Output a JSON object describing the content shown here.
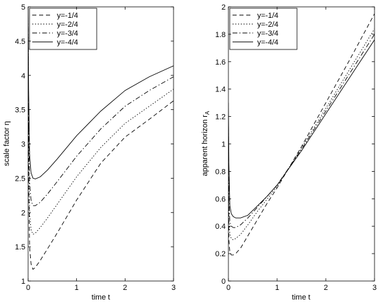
{
  "chart_data": [
    {
      "type": "line",
      "xlabel": "time t",
      "ylabel": "scale factor η",
      "xlim": [
        0,
        3
      ],
      "ylim": [
        1,
        5
      ],
      "xticks": [
        "0",
        "1",
        "2",
        "3"
      ],
      "yticks": [
        "1",
        "1.5",
        "2",
        "2.5",
        "3",
        "3.5",
        "4",
        "4.5",
        "5"
      ],
      "legend_position": "top-left",
      "grid": false,
      "series": [
        {
          "name": "y=-1/4",
          "style": "dashed",
          "x": [
            0,
            0.01,
            0.03,
            0.06,
            0.1,
            0.15,
            0.25,
            0.4,
            0.6,
            1.0,
            1.5,
            2.0,
            2.5,
            3.0
          ],
          "y": [
            5.0,
            2.5,
            1.5,
            1.25,
            1.17,
            1.2,
            1.3,
            1.47,
            1.7,
            2.18,
            2.72,
            3.1,
            3.36,
            3.63
          ]
        },
        {
          "name": "y=-2/4",
          "style": "dotted",
          "x": [
            0,
            0.01,
            0.03,
            0.06,
            0.1,
            0.15,
            0.25,
            0.4,
            0.6,
            1.0,
            1.5,
            2.0,
            2.5,
            3.0
          ],
          "y": [
            5.0,
            2.9,
            2.0,
            1.75,
            1.68,
            1.7,
            1.78,
            1.92,
            2.12,
            2.52,
            2.95,
            3.3,
            3.55,
            3.8
          ]
        },
        {
          "name": "y=-3/4",
          "style": "dashdot",
          "x": [
            0,
            0.01,
            0.03,
            0.06,
            0.1,
            0.15,
            0.25,
            0.4,
            0.6,
            1.0,
            1.5,
            2.0,
            2.5,
            3.0
          ],
          "y": [
            5.0,
            3.3,
            2.45,
            2.18,
            2.1,
            2.1,
            2.15,
            2.27,
            2.45,
            2.82,
            3.22,
            3.55,
            3.78,
            3.98
          ]
        },
        {
          "name": "y=-4/4",
          "style": "solid",
          "x": [
            0,
            0.01,
            0.03,
            0.06,
            0.1,
            0.15,
            0.25,
            0.4,
            0.6,
            1.0,
            1.5,
            2.0,
            2.5,
            3.0
          ],
          "y": [
            5.0,
            3.8,
            2.85,
            2.58,
            2.5,
            2.49,
            2.52,
            2.62,
            2.78,
            3.12,
            3.48,
            3.78,
            3.98,
            4.14
          ]
        }
      ]
    },
    {
      "type": "line",
      "xlabel": "time t",
      "ylabel": "apparent horizon r",
      "ylabel_subscript": "A",
      "xlim": [
        0,
        3
      ],
      "ylim": [
        0,
        2
      ],
      "xticks": [
        "0",
        "1",
        "2",
        "3"
      ],
      "yticks": [
        "0",
        "0.2",
        "0.4",
        "0.6",
        "0.8",
        "1",
        "1.2",
        "1.4",
        "1.6",
        "1.8",
        "2"
      ],
      "legend_position": "top-left",
      "grid": false,
      "series": [
        {
          "name": "y=-1/4",
          "style": "dashed",
          "x": [
            0,
            0.01,
            0.03,
            0.06,
            0.1,
            0.15,
            0.25,
            0.4,
            0.6,
            0.8,
            1.0,
            1.5,
            2.0,
            2.5,
            3.0
          ],
          "y": [
            0.85,
            0.3,
            0.21,
            0.19,
            0.19,
            0.2,
            0.24,
            0.33,
            0.45,
            0.57,
            0.68,
            0.98,
            1.3,
            1.62,
            1.95
          ]
        },
        {
          "name": "y=-2/4",
          "style": "dotted",
          "x": [
            0,
            0.01,
            0.03,
            0.06,
            0.1,
            0.15,
            0.25,
            0.4,
            0.6,
            0.8,
            1.0,
            1.5,
            2.0,
            2.5,
            3.0
          ],
          "y": [
            1.0,
            0.45,
            0.34,
            0.31,
            0.3,
            0.31,
            0.34,
            0.41,
            0.51,
            0.6,
            0.69,
            0.97,
            1.26,
            1.55,
            1.84
          ]
        },
        {
          "name": "y=-3/4",
          "style": "dashdot",
          "x": [
            0,
            0.01,
            0.03,
            0.06,
            0.1,
            0.15,
            0.25,
            0.4,
            0.6,
            0.8,
            1.0,
            1.5,
            2.0,
            2.5,
            3.0
          ],
          "y": [
            1.2,
            0.6,
            0.43,
            0.4,
            0.39,
            0.39,
            0.41,
            0.46,
            0.54,
            0.62,
            0.7,
            0.96,
            1.24,
            1.52,
            1.8
          ]
        },
        {
          "name": "y=-4/4",
          "style": "solid",
          "x": [
            0,
            0.01,
            0.03,
            0.06,
            0.1,
            0.15,
            0.25,
            0.4,
            0.6,
            0.8,
            1.0,
            1.5,
            2.0,
            2.5,
            3.0
          ],
          "y": [
            1.3,
            0.85,
            0.55,
            0.49,
            0.47,
            0.46,
            0.46,
            0.48,
            0.55,
            0.62,
            0.7,
            0.95,
            1.22,
            1.49,
            1.76
          ]
        }
      ]
    }
  ]
}
